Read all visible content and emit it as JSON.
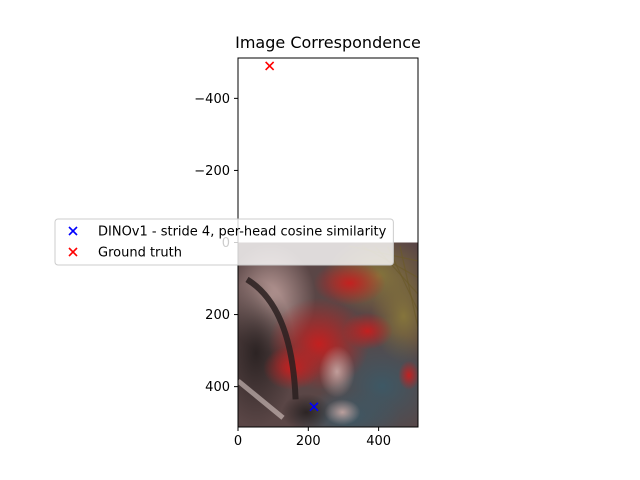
{
  "chart_data": {
    "type": "scatter",
    "title": "Image Correspondence",
    "xlabel": "",
    "ylabel": "",
    "xlim": [
      0,
      512
    ],
    "ylim": [
      512,
      -512
    ],
    "y_inverted": true,
    "x_ticks": [
      0,
      200,
      400
    ],
    "y_ticks": [
      -400,
      -200,
      0,
      200,
      400
    ],
    "x_tick_labels": [
      "0",
      "200",
      "400"
    ],
    "y_tick_labels": [
      "−400",
      "−200",
      "0",
      "200",
      "400"
    ],
    "image_extent": {
      "x": [
        0,
        512
      ],
      "y": [
        0,
        512
      ]
    },
    "grid": false,
    "legend_position": "center-left",
    "series": [
      {
        "name": "DINOv1 - stride 4, per-head cosine similarity",
        "color": "#0000ff",
        "marker": "x",
        "points": [
          [
            216,
            456
          ]
        ]
      },
      {
        "name": "Ground truth",
        "color": "#ff0000",
        "marker": "x",
        "points": [
          [
            90,
            -490
          ]
        ]
      }
    ]
  }
}
